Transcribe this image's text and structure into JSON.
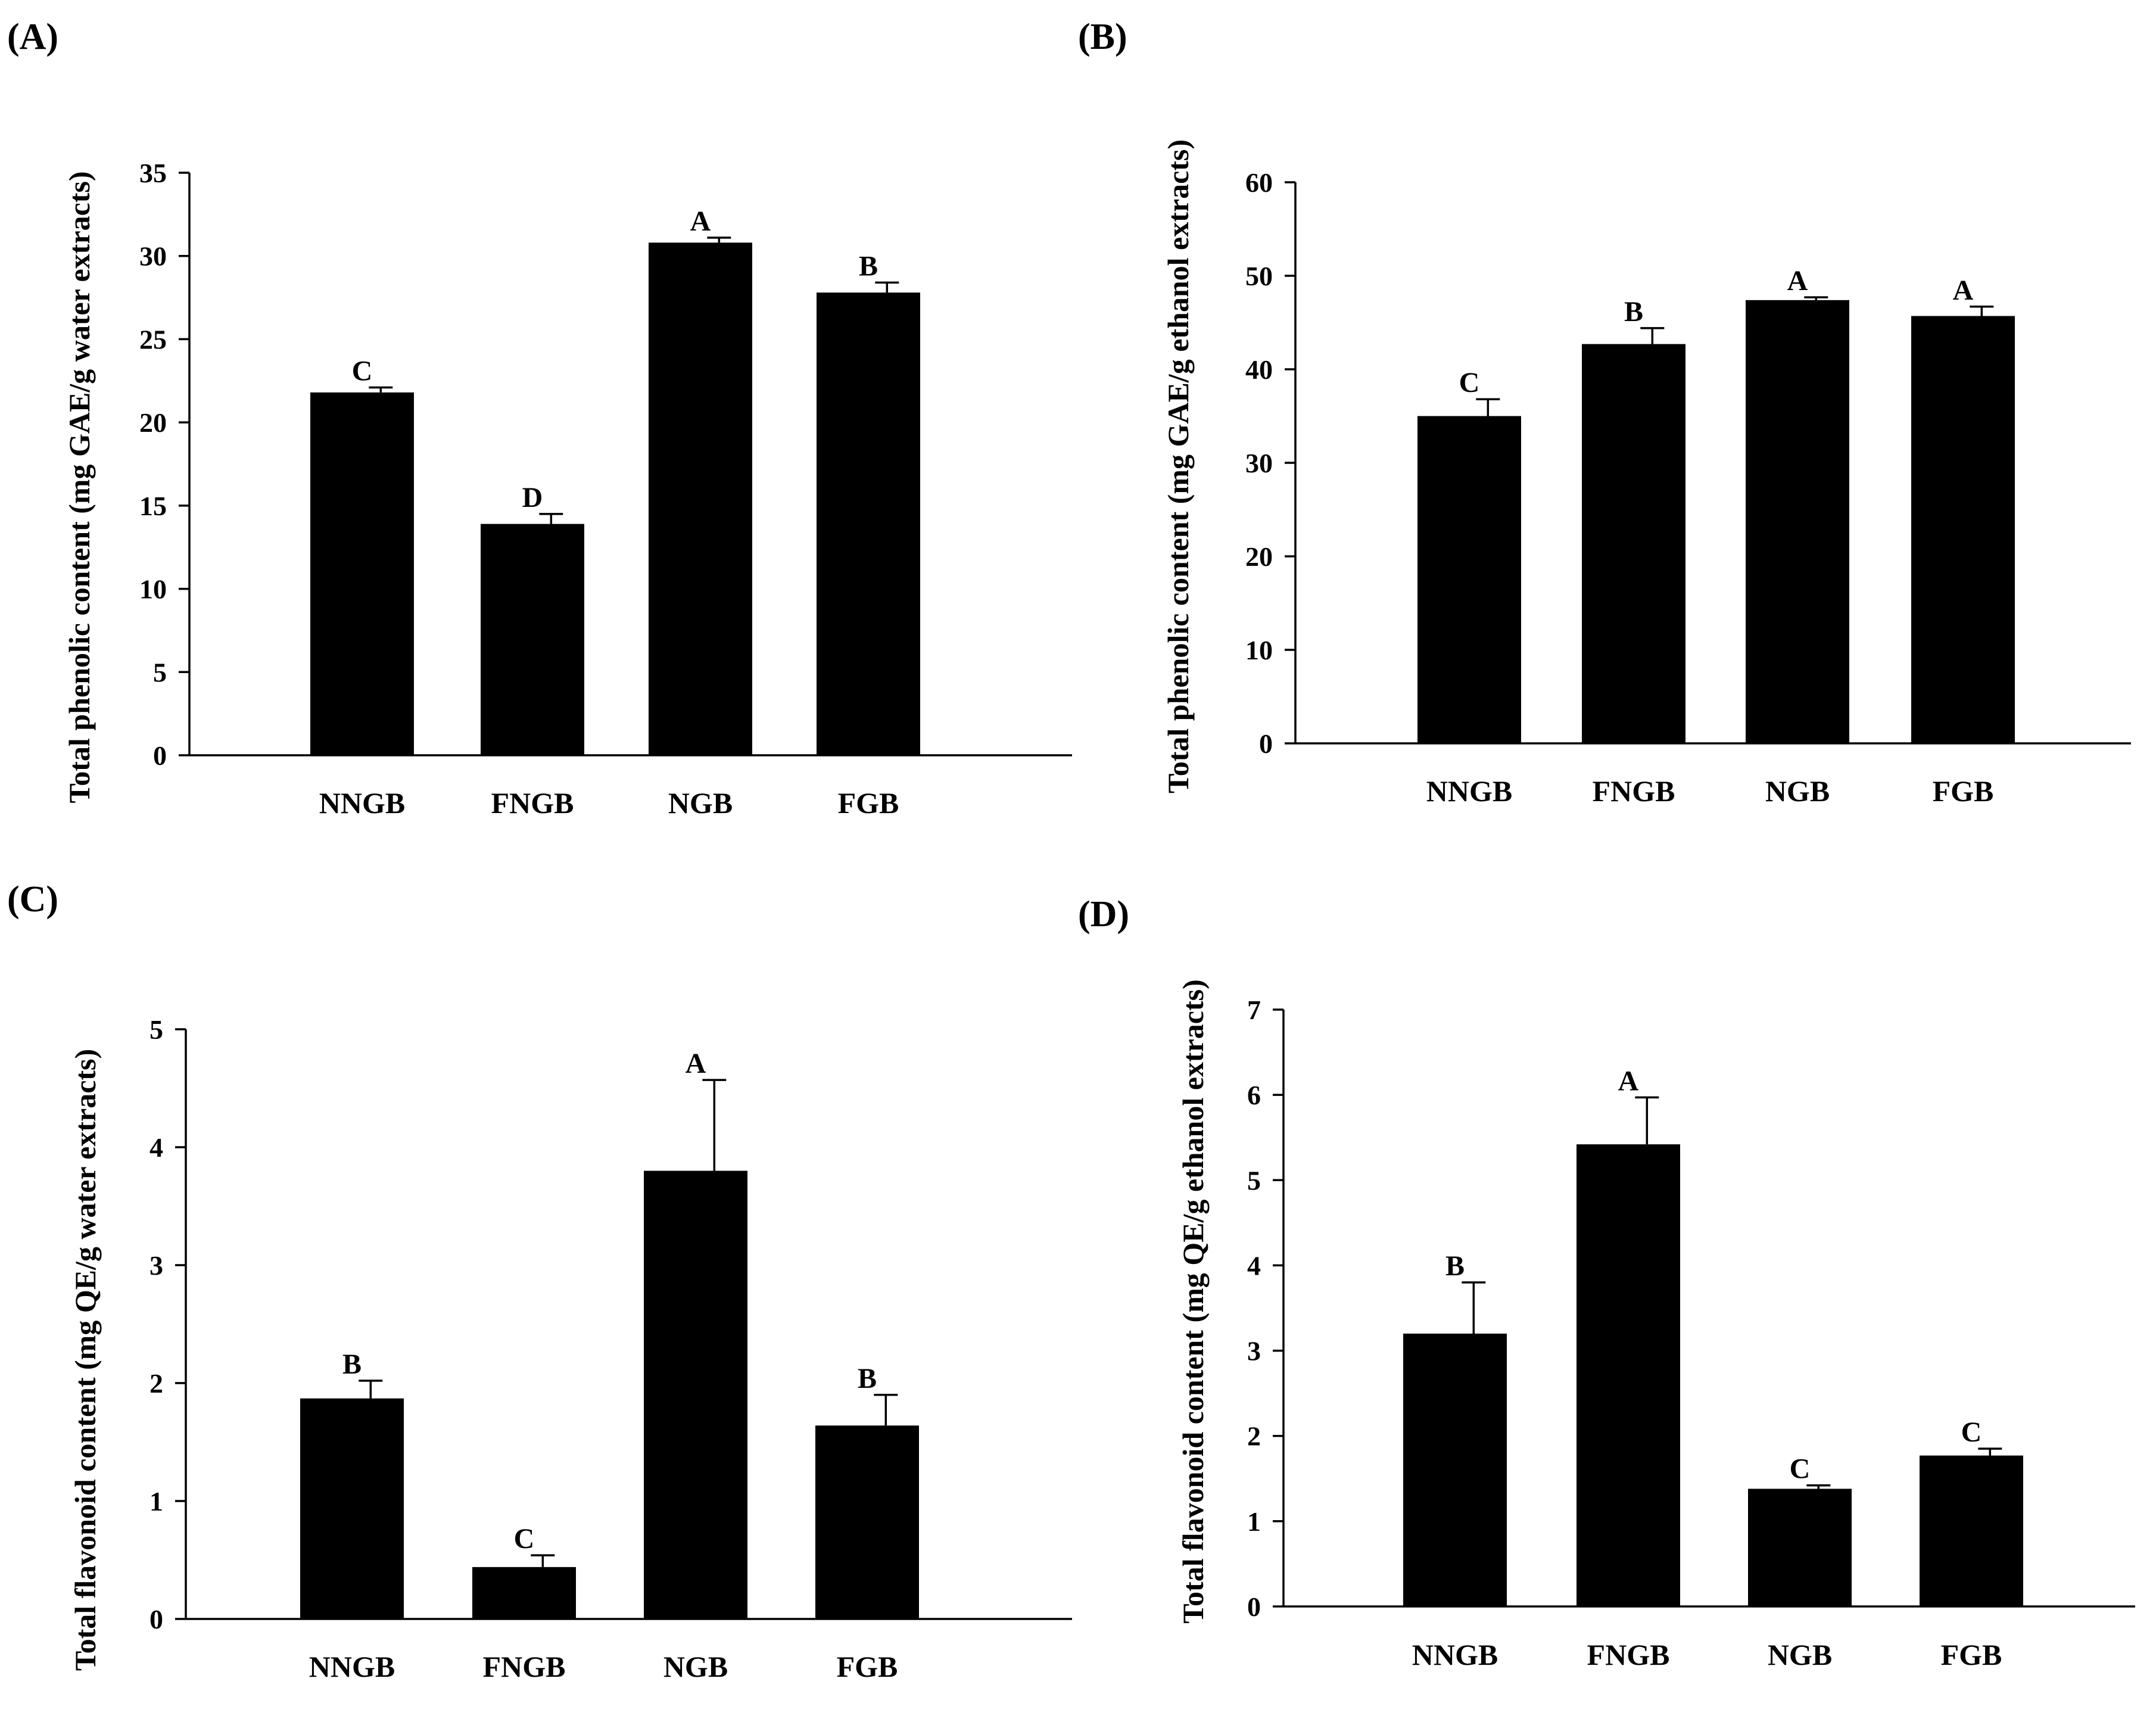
{
  "chart_data": [
    {
      "panel": "(A)",
      "type": "bar",
      "categories": [
        "NNGB",
        "FNGB",
        "NGB",
        "FGB"
      ],
      "values": [
        21.8,
        13.9,
        30.8,
        27.8
      ],
      "errors": [
        0.3,
        0.6,
        0.3,
        0.6
      ],
      "significance": [
        "C",
        "D",
        "A",
        "B"
      ],
      "ylabel": "Total phenolic content (mg GAE/g water extracts)",
      "ylim": [
        0,
        35
      ],
      "yticks": [
        0,
        5,
        10,
        15,
        20,
        25,
        30,
        35
      ],
      "xlabel": ""
    },
    {
      "panel": "(B)",
      "type": "bar",
      "categories": [
        "NNGB",
        "FNGB",
        "NGB",
        "FGB"
      ],
      "values": [
        35.0,
        42.7,
        47.4,
        45.7
      ],
      "errors": [
        1.8,
        1.7,
        0.3,
        1.0
      ],
      "significance": [
        "C",
        "B",
        "A",
        "A"
      ],
      "ylabel": "Total phenolic content (mg GAE/g ethanol extracts)",
      "ylim": [
        0,
        60
      ],
      "yticks": [
        0,
        10,
        20,
        30,
        40,
        50,
        60
      ],
      "xlabel": ""
    },
    {
      "panel": "(C)",
      "type": "bar",
      "categories": [
        "NNGB",
        "FNGB",
        "NGB",
        "FGB"
      ],
      "values": [
        1.87,
        0.44,
        3.8,
        1.64
      ],
      "errors": [
        0.15,
        0.1,
        0.77,
        0.26
      ],
      "significance": [
        "B",
        "C",
        "A",
        "B"
      ],
      "ylabel": "Total flavonoid content (mg QE/g water extracts)",
      "ylim": [
        0,
        5
      ],
      "yticks": [
        0,
        1,
        2,
        3,
        4,
        5
      ],
      "xlabel": ""
    },
    {
      "panel": "(D)",
      "type": "bar",
      "categories": [
        "NNGB",
        "FNGB",
        "NGB",
        "FGB"
      ],
      "values": [
        3.2,
        5.42,
        1.38,
        1.77
      ],
      "errors": [
        0.6,
        0.55,
        0.04,
        0.08
      ],
      "significance": [
        "B",
        "A",
        "C",
        "C"
      ],
      "ylabel": "Total flavonoid content (mg QE/g ethanol extracts)",
      "ylim": [
        0,
        7
      ],
      "yticks": [
        0,
        1,
        2,
        3,
        4,
        5,
        6,
        7
      ],
      "xlabel": ""
    }
  ]
}
